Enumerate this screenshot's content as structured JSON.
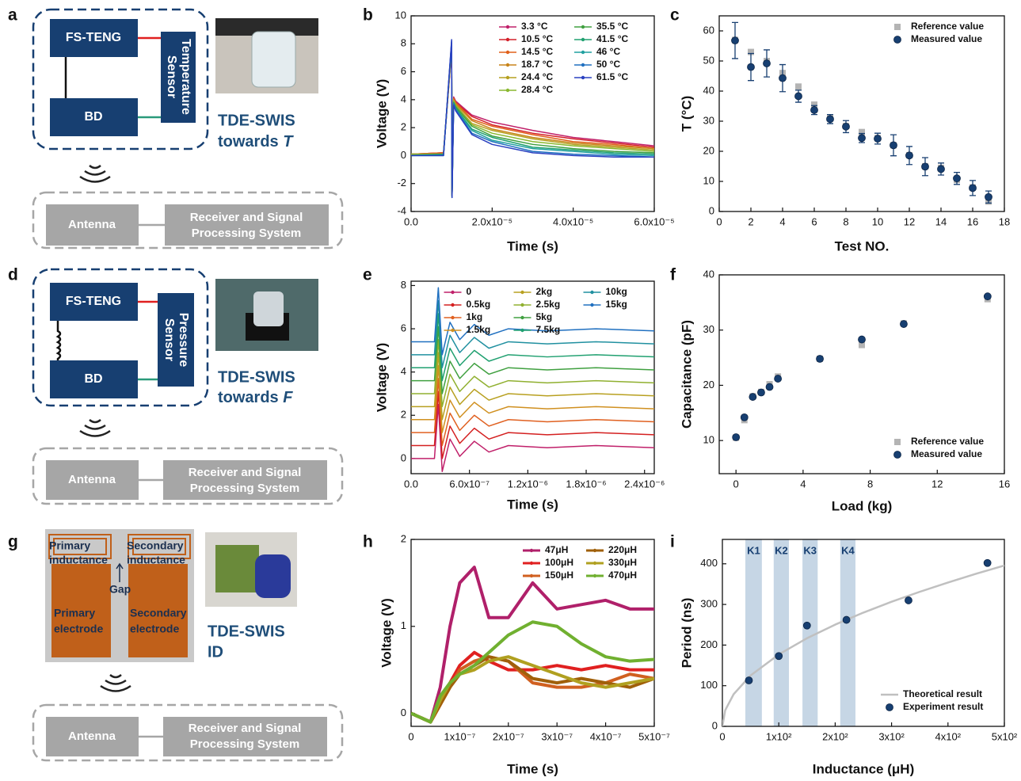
{
  "panel_labels": [
    "a",
    "b",
    "c",
    "d",
    "e",
    "f",
    "g",
    "h",
    "i"
  ],
  "diagrams": [
    {
      "top_block": "FS-TENG",
      "bottom_block": "BD",
      "sensor": [
        "Temperature",
        "Sensor"
      ],
      "caption": [
        "TDE-SWIS",
        "towards"
      ],
      "caption_var": "T",
      "antenna": "Antenna",
      "receiver": [
        "Receiver and Signal",
        "Processing System"
      ]
    },
    {
      "top_block": "FS-TENG",
      "bottom_block": "BD",
      "sensor": [
        "Pressure",
        "Sensor"
      ],
      "caption": [
        "TDE-SWIS",
        "towards"
      ],
      "caption_var": "F",
      "antenna": "Antenna",
      "receiver": [
        "Receiver and Signal",
        "Processing System"
      ]
    },
    {
      "primary_inductance": [
        "Primary",
        "inductance"
      ],
      "secondary_inductance": [
        "Secondary",
        "inductance"
      ],
      "gap": "Gap",
      "primary_electrode": [
        "Primary",
        "electrode"
      ],
      "secondary_electrode": [
        "Secondary",
        "electrode"
      ],
      "caption": [
        "TDE-SWIS",
        "ID"
      ],
      "antenna": "Antenna",
      "receiver": [
        "Receiver and Signal",
        "Processing System"
      ]
    }
  ],
  "chart_data": [
    {
      "type": "line",
      "xlabel": "Time (s)",
      "ylabel": "Voltage (V)",
      "xlim": [
        0,
        6e-05
      ],
      "ylim": [
        -4,
        10
      ],
      "xticks": [
        {
          "value": 0,
          "label": "0.0"
        },
        {
          "value": 2e-05,
          "label": "2.0x10⁻⁵"
        },
        {
          "value": 4e-05,
          "label": "4.0x10⁻⁵"
        },
        {
          "value": 6e-05,
          "label": "6.0x10⁻⁵"
        }
      ],
      "yticks": [
        -4,
        -2,
        0,
        2,
        4,
        6,
        8,
        10
      ],
      "legend": "upper right",
      "legend_columns": 2,
      "x": [
        0,
        8e-06,
        1e-05,
        1.01e-05,
        1.05e-05,
        1.1e-05,
        1.5e-05,
        2e-05,
        3e-05,
        4e-05,
        5e-05,
        6e-05
      ],
      "series": [
        {
          "name": "3.3 °C",
          "color": "#c0206a",
          "values": [
            0.1,
            0.2,
            7.5,
            -2.8,
            4.2,
            3.9,
            2.9,
            2.4,
            1.8,
            1.3,
            1.0,
            0.7
          ]
        },
        {
          "name": "10.5 °C",
          "color": "#d4202a",
          "values": [
            0.1,
            0.2,
            7.6,
            -2.8,
            4.1,
            3.8,
            2.8,
            2.2,
            1.6,
            1.2,
            0.9,
            0.6
          ]
        },
        {
          "name": "14.5 °C",
          "color": "#e0601a",
          "values": [
            0.1,
            0.2,
            7.7,
            -2.8,
            4.1,
            3.8,
            2.6,
            2.1,
            1.5,
            1.0,
            0.8,
            0.5
          ]
        },
        {
          "name": "18.7 °C",
          "color": "#c8841a",
          "values": [
            0.1,
            0.1,
            7.7,
            -2.9,
            4.0,
            3.7,
            2.5,
            1.9,
            1.3,
            0.9,
            0.7,
            0.5
          ]
        },
        {
          "name": "24.4 °C",
          "color": "#b5a020",
          "values": [
            0.1,
            0.1,
            7.8,
            -2.9,
            4.0,
            3.6,
            2.3,
            1.8,
            1.2,
            0.8,
            0.6,
            0.4
          ]
        },
        {
          "name": "28.4 °C",
          "color": "#8ab830",
          "values": [
            0.1,
            0.1,
            7.9,
            -2.9,
            3.9,
            3.6,
            2.2,
            1.6,
            1.0,
            0.7,
            0.5,
            0.3
          ]
        },
        {
          "name": "35.5 °C",
          "color": "#40a040",
          "values": [
            0,
            0.1,
            8.0,
            -2.9,
            3.8,
            3.5,
            2.1,
            1.4,
            0.8,
            0.5,
            0.3,
            0.2
          ]
        },
        {
          "name": "41.5 °C",
          "color": "#20a070",
          "values": [
            0,
            0.1,
            8.1,
            -2.9,
            3.8,
            3.4,
            1.9,
            1.3,
            0.6,
            0.4,
            0.2,
            0.1
          ]
        },
        {
          "name": "46 °C",
          "color": "#20a0a0",
          "values": [
            0,
            0,
            8.1,
            -3.0,
            3.7,
            3.3,
            1.8,
            1.1,
            0.5,
            0.3,
            0.1,
            0
          ]
        },
        {
          "name": "50 °C",
          "color": "#2070c0",
          "values": [
            0,
            0,
            8.2,
            -3.0,
            3.7,
            3.3,
            1.6,
            1.0,
            0.3,
            0.1,
            0,
            -0.1
          ]
        },
        {
          "name": "61.5 °C",
          "color": "#2a40c0",
          "values": [
            0,
            0,
            8.3,
            -3.0,
            3.6,
            3.2,
            1.5,
            0.8,
            0.2,
            0,
            -0.1,
            -0.1
          ]
        }
      ]
    },
    {
      "type": "scatter",
      "xlabel": "Test NO.",
      "ylabel": "T (°C)",
      "xlim": [
        0,
        18
      ],
      "ylim": [
        0,
        65
      ],
      "xticks": [
        0,
        2,
        4,
        6,
        8,
        10,
        12,
        14,
        16,
        18
      ],
      "yticks": [
        0,
        10,
        20,
        30,
        40,
        50,
        60
      ],
      "legend": "upper right",
      "legend_columns": 1,
      "x": [
        1,
        2,
        3,
        4,
        5,
        6,
        7,
        8,
        9,
        10,
        11,
        12,
        13,
        14,
        15,
        16,
        17
      ],
      "series": [
        {
          "name": "Reference value",
          "color": "#b4b4b4",
          "marker": "square",
          "values": [
            57,
            53,
            50,
            46,
            41.5,
            35.5,
            31,
            28.4,
            26.4,
            24.4,
            22,
            18.7,
            15,
            14.5,
            10.5,
            8,
            3.3
          ]
        },
        {
          "name": "Measured value",
          "color": "#173f71",
          "marker": "circle",
          "values": [
            56.8,
            48,
            49.2,
            44.3,
            38.3,
            33.7,
            30.7,
            28.2,
            24.4,
            24.2,
            22,
            18.6,
            14.9,
            14.1,
            11,
            7.8,
            4.8
          ],
          "errors": [
            6,
            4.5,
            4.5,
            4.5,
            2,
            1.5,
            1.5,
            2,
            1.5,
            1.8,
            3.5,
            3,
            3,
            2,
            2,
            2.5,
            2
          ]
        }
      ]
    },
    {
      "type": "line",
      "xlabel": "Time (s)",
      "ylabel": "Voltage (V)",
      "xlim": [
        0,
        2.5e-06
      ],
      "ylim": [
        -0.7,
        8.2
      ],
      "xticks": [
        {
          "value": 0,
          "label": "0.0"
        },
        {
          "value": 6e-07,
          "label": "6.0x10⁻⁷"
        },
        {
          "value": 1.2e-06,
          "label": "1.2x10⁻⁶"
        },
        {
          "value": 1.8e-06,
          "label": "1.8x10⁻⁶"
        },
        {
          "value": 2.4e-06,
          "label": "2.4x10⁻⁶"
        }
      ],
      "yticks": [
        0,
        2,
        4,
        6,
        8
      ],
      "legend": "upper center",
      "legend_columns": 3,
      "x": [
        0,
        2.4e-07,
        2.8e-07,
        3.2e-07,
        4e-07,
        5e-07,
        6.5e-07,
        8e-07,
        1e-06,
        1.4e-06,
        1.9e-06,
        2.5e-06
      ],
      "series": [
        {
          "name": "0",
          "color": "#c0206a",
          "values": [
            0,
            0,
            2.5,
            -0.6,
            0.9,
            0.1,
            0.8,
            0.3,
            0.6,
            0.5,
            0.6,
            0.5
          ]
        },
        {
          "name": "0.5kg",
          "color": "#d42020",
          "values": [
            0.6,
            0.6,
            3.1,
            0,
            1.5,
            0.7,
            1.4,
            0.9,
            1.2,
            1.1,
            1.2,
            1.1
          ]
        },
        {
          "name": "1kg",
          "color": "#e06020",
          "values": [
            1.2,
            1.2,
            3.7,
            0.6,
            2.1,
            1.3,
            2,
            1.5,
            1.8,
            1.7,
            1.8,
            1.7
          ]
        },
        {
          "name": "1.5kg",
          "color": "#d09020",
          "values": [
            1.8,
            1.8,
            4.3,
            1.2,
            2.7,
            1.9,
            2.6,
            2.1,
            2.4,
            2.3,
            2.4,
            2.3
          ]
        },
        {
          "name": "2kg",
          "color": "#b8a020",
          "values": [
            2.4,
            2.4,
            4.9,
            1.8,
            3.3,
            2.5,
            3.2,
            2.7,
            3,
            2.9,
            3,
            2.9
          ]
        },
        {
          "name": "2.5kg",
          "color": "#90b030",
          "values": [
            3,
            3,
            5.5,
            2.4,
            3.9,
            3.1,
            3.8,
            3.3,
            3.6,
            3.5,
            3.6,
            3.5
          ]
        },
        {
          "name": "5kg",
          "color": "#40a040",
          "values": [
            3.6,
            3.6,
            6.1,
            3,
            4.5,
            3.7,
            4.4,
            3.9,
            4.2,
            4.1,
            4.2,
            4.1
          ]
        },
        {
          "name": "7.5kg",
          "color": "#20a070",
          "values": [
            4.2,
            4.2,
            6.7,
            3.6,
            5.1,
            4.3,
            5,
            4.5,
            4.8,
            4.7,
            4.8,
            4.7
          ]
        },
        {
          "name": "10kg",
          "color": "#2090a0",
          "values": [
            4.8,
            4.8,
            7.3,
            4.2,
            5.7,
            4.9,
            5.6,
            5.1,
            5.4,
            5.3,
            5.4,
            5.3
          ]
        },
        {
          "name": "15kg",
          "color": "#2070c0",
          "values": [
            5.4,
            5.4,
            7.9,
            4.8,
            6.3,
            5.5,
            6.2,
            5.7,
            6,
            5.9,
            6,
            5.9
          ]
        }
      ]
    },
    {
      "type": "scatter",
      "xlabel": "Load (kg)",
      "ylabel": "Capacitance (pF)",
      "xlim": [
        -1,
        16
      ],
      "ylim": [
        4,
        40
      ],
      "xticks": [
        0,
        4,
        8,
        12,
        16
      ],
      "yticks": [
        10,
        20,
        30,
        40
      ],
      "legend": "lower right",
      "legend_columns": 1,
      "x": [
        0,
        0.5,
        1,
        1.5,
        2,
        2.5,
        5,
        7.5,
        10,
        15
      ],
      "series": [
        {
          "name": "Reference value",
          "color": "#b4b4b4",
          "marker": "square",
          "values": [
            10.5,
            13.7,
            18,
            18.8,
            20.2,
            21.6,
            24.8,
            27.3,
            31.2,
            35.6
          ]
        },
        {
          "name": "Measured value",
          "color": "#173f71",
          "marker": "circle",
          "values": [
            10.6,
            14.2,
            17.9,
            18.7,
            19.7,
            21.2,
            24.8,
            28.3,
            31.1,
            36.1
          ]
        }
      ]
    },
    {
      "type": "line",
      "xlabel": "Time (s)",
      "ylabel": "Voltage (V)",
      "xlim": [
        0,
        5e-07
      ],
      "ylim": [
        -0.15,
        2
      ],
      "xticks": [
        0,
        {
          "value": 1e-07,
          "label": "1x10⁻⁷"
        },
        {
          "value": 2e-07,
          "label": "2x10⁻⁷"
        },
        {
          "value": 3e-07,
          "label": "3x10⁻⁷"
        },
        {
          "value": 4e-07,
          "label": "4x10⁻⁷"
        },
        {
          "value": 5e-07,
          "label": "5x10⁻⁷"
        }
      ],
      "yticks": [
        0,
        1,
        2
      ],
      "legend": "upper right",
      "legend_columns": 2,
      "x": [
        0,
        4e-08,
        6e-08,
        8e-08,
        1e-07,
        1.3e-07,
        1.6e-07,
        2e-07,
        2.5e-07,
        3e-07,
        3.5e-07,
        4e-07,
        4.5e-07,
        5e-07
      ],
      "series": [
        {
          "name": "47μH",
          "color": "#b0206a",
          "values": [
            0,
            -0.1,
            0.3,
            1.0,
            1.5,
            1.68,
            1.1,
            1.1,
            1.5,
            1.2,
            1.25,
            1.3,
            1.2,
            1.2
          ]
        },
        {
          "name": "100μH",
          "color": "#e02020",
          "values": [
            0,
            -0.1,
            0.1,
            0.35,
            0.55,
            0.7,
            0.6,
            0.5,
            0.5,
            0.55,
            0.5,
            0.55,
            0.5,
            0.5
          ]
        },
        {
          "name": "150μH",
          "color": "#d06020",
          "values": [
            0,
            -0.1,
            0.1,
            0.3,
            0.5,
            0.6,
            0.65,
            0.6,
            0.35,
            0.3,
            0.3,
            0.35,
            0.45,
            0.4
          ]
        },
        {
          "name": "220μH",
          "color": "#a0600a",
          "values": [
            0,
            -0.1,
            0.1,
            0.3,
            0.45,
            0.55,
            0.65,
            0.6,
            0.4,
            0.35,
            0.4,
            0.35,
            0.3,
            0.4
          ]
        },
        {
          "name": "330μH",
          "color": "#b0a020",
          "values": [
            0,
            -0.1,
            0.15,
            0.35,
            0.45,
            0.5,
            0.6,
            0.65,
            0.55,
            0.45,
            0.35,
            0.3,
            0.35,
            0.4
          ]
        },
        {
          "name": "470μH",
          "color": "#70b030",
          "values": [
            0,
            -0.1,
            0.2,
            0.35,
            0.45,
            0.55,
            0.7,
            0.9,
            1.05,
            1.0,
            0.8,
            0.65,
            0.6,
            0.62
          ]
        }
      ]
    },
    {
      "type": "scatter",
      "xlabel": "Inductance (μH)",
      "ylabel": "Period (ns)",
      "xlim": [
        0,
        500
      ],
      "ylim": [
        0,
        460
      ],
      "xticks": [
        0,
        {
          "value": 100,
          "label": "1x10²"
        },
        {
          "value": 200,
          "label": "2x10²"
        },
        {
          "value": 300,
          "label": "3x10²"
        },
        {
          "value": 400,
          "label": "4x10²"
        },
        {
          "value": 500,
          "label": "5x10²"
        }
      ],
      "yticks": [
        0,
        100,
        200,
        300,
        400
      ],
      "legend": "lower right",
      "legend_columns": 1,
      "bands": [
        {
          "label": "K1",
          "range": [
            40.7,
            70
          ]
        },
        {
          "label": "K2",
          "range": [
            91,
            118
          ]
        },
        {
          "label": "K3",
          "range": [
            142,
            169
          ]
        },
        {
          "label": "K4",
          "range": [
            209,
            236
          ]
        }
      ],
      "series": [
        {
          "name": "Theoretical result",
          "color": "#c0c0c0",
          "mode": "line",
          "x": [
            0,
            5,
            20,
            50,
            100,
            150,
            200,
            250,
            300,
            350,
            400,
            450,
            500
          ],
          "values": [
            0,
            39.6,
            79.2,
            125.2,
            177,
            216.8,
            250.3,
            279.9,
            306.6,
            331.1,
            354,
            375.5,
            395.8
          ]
        },
        {
          "name": "Experiment result",
          "color": "#173f71",
          "marker": "circle",
          "x": [
            47,
            100,
            150,
            220,
            330,
            470
          ],
          "values": [
            113,
            173,
            248,
            262,
            310,
            402
          ]
        }
      ]
    }
  ]
}
